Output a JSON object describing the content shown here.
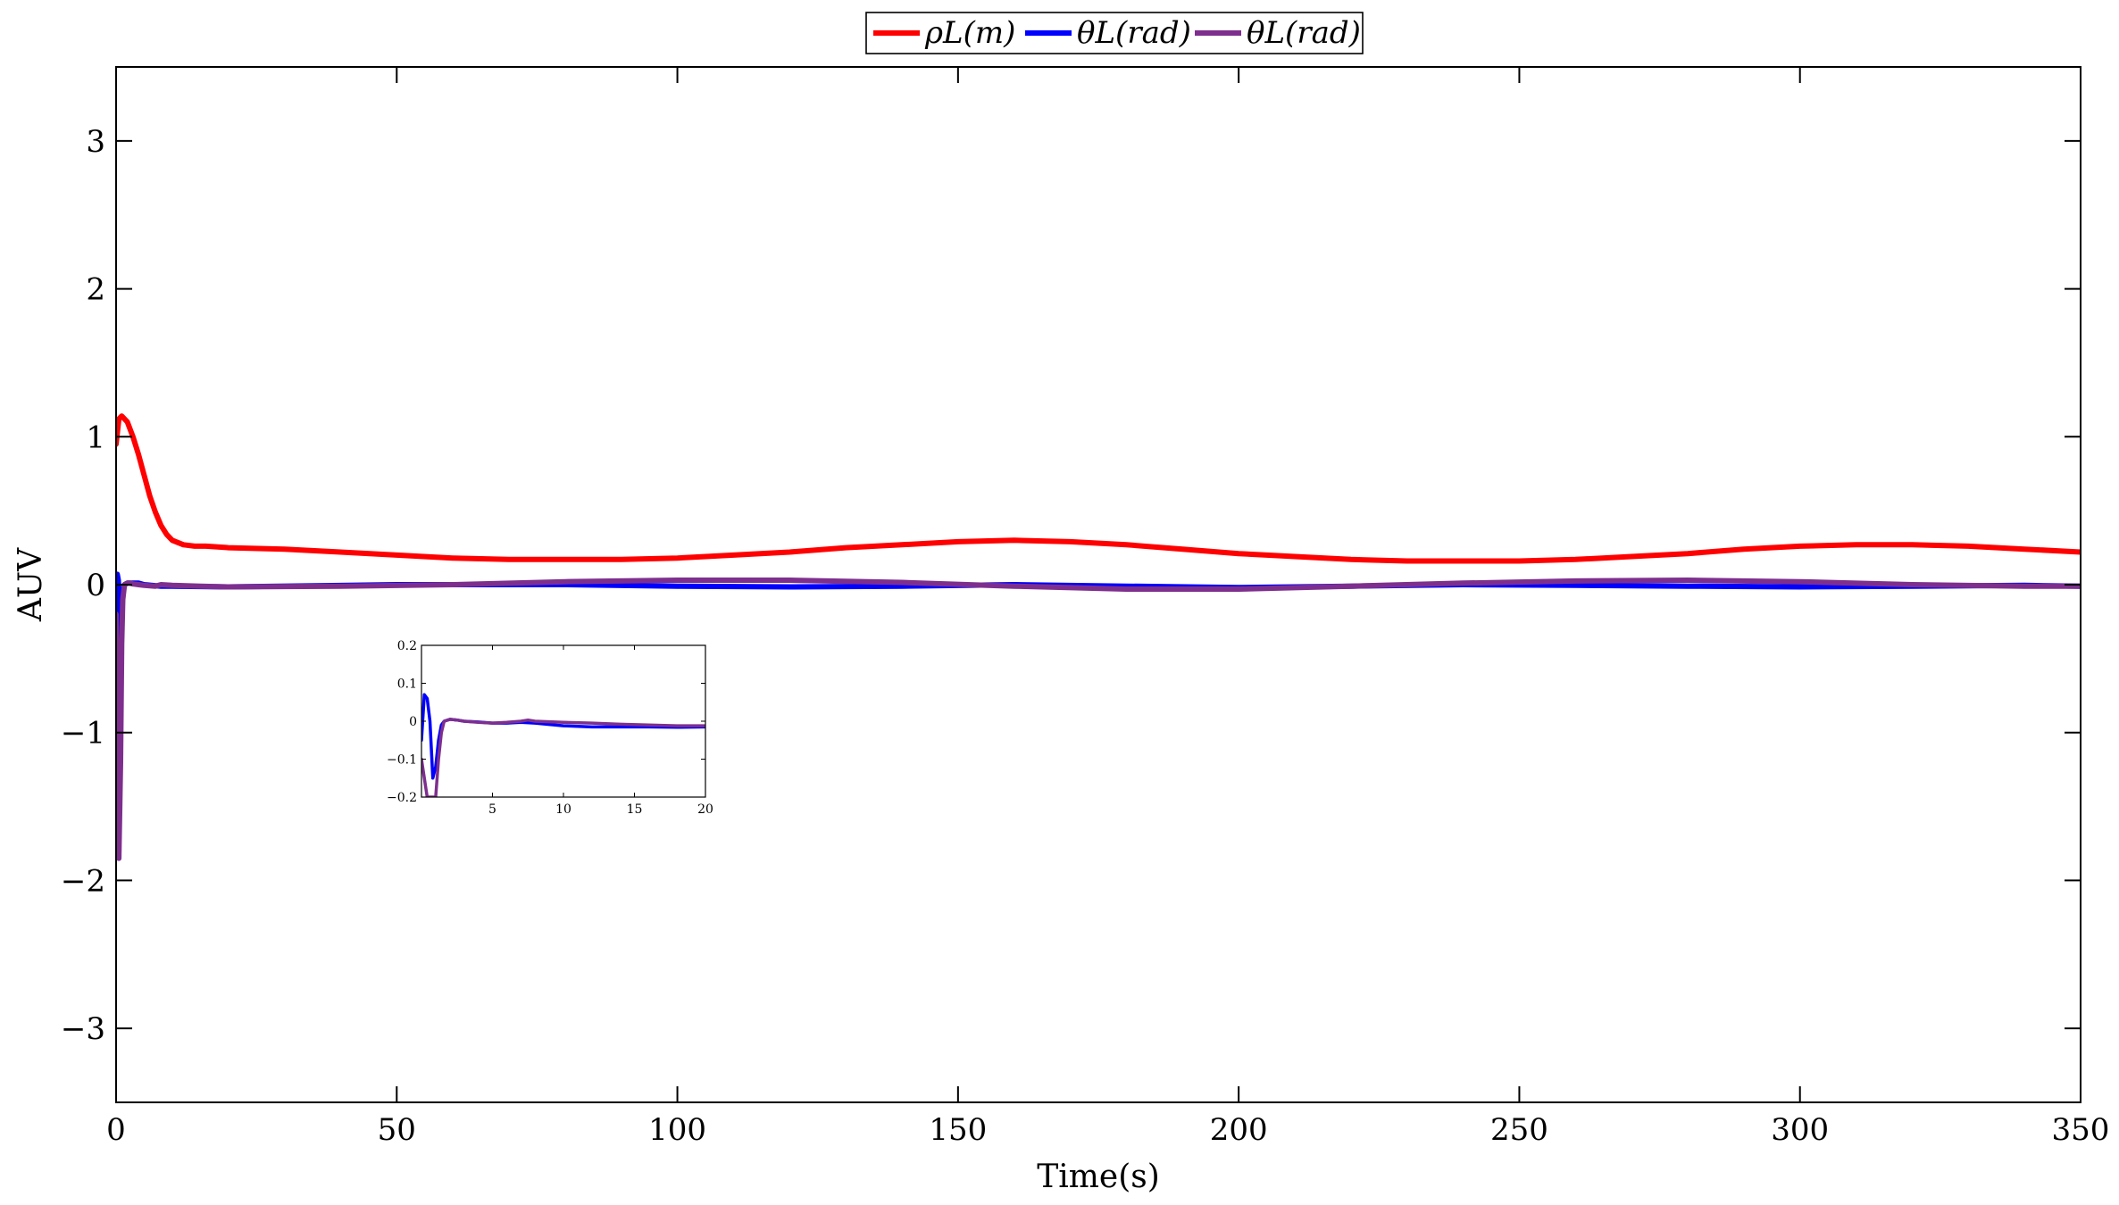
{
  "chart_data": [
    {
      "type": "line",
      "title": "",
      "xlabel": "Time(s)",
      "ylabel": "AUV",
      "xlim": [
        0,
        350
      ],
      "ylim": [
        -3.5,
        3.5
      ],
      "xticks": [
        0,
        50,
        100,
        150,
        200,
        250,
        300,
        350
      ],
      "yticks": [
        -3,
        -2,
        -1,
        0,
        1,
        2,
        3
      ],
      "xtick_labels": [
        "0",
        "50",
        "100",
        "150",
        "200",
        "250",
        "300",
        "350"
      ],
      "ytick_labels": [
        "−3",
        "−2",
        "−1",
        "0",
        "1",
        "2",
        "3"
      ],
      "grid": false,
      "legend_position": "top-center",
      "series": [
        {
          "name": "ρL(m)",
          "color": "#ff0000",
          "x": [
            0,
            0.5,
            1,
            2,
            3,
            4,
            5,
            6,
            7,
            8,
            9,
            10,
            12,
            14,
            16,
            20,
            30,
            40,
            50,
            60,
            70,
            80,
            90,
            100,
            110,
            120,
            130,
            140,
            150,
            160,
            170,
            180,
            190,
            200,
            210,
            220,
            230,
            240,
            250,
            260,
            270,
            280,
            290,
            300,
            310,
            320,
            330,
            340,
            350
          ],
          "values": [
            0.95,
            1.12,
            1.14,
            1.1,
            1.0,
            0.88,
            0.74,
            0.6,
            0.49,
            0.4,
            0.34,
            0.3,
            0.27,
            0.26,
            0.26,
            0.25,
            0.24,
            0.22,
            0.2,
            0.18,
            0.17,
            0.17,
            0.17,
            0.18,
            0.2,
            0.22,
            0.25,
            0.27,
            0.29,
            0.3,
            0.29,
            0.27,
            0.24,
            0.21,
            0.19,
            0.17,
            0.16,
            0.16,
            0.16,
            0.17,
            0.19,
            0.21,
            0.24,
            0.26,
            0.27,
            0.27,
            0.26,
            0.24,
            0.22
          ]
        },
        {
          "name": "θL(rad)",
          "color": "#0000ff",
          "x": [
            0,
            0.2,
            0.4,
            0.6,
            0.8,
            1.0,
            1.2,
            1.5,
            2,
            3,
            4,
            5,
            8,
            10,
            20,
            50,
            80,
            100,
            120,
            140,
            160,
            180,
            200,
            220,
            240,
            260,
            280,
            300,
            320,
            340,
            350
          ],
          "values": [
            -0.05,
            0.07,
            0.03,
            -0.15,
            -0.6,
            -0.2,
            -0.05,
            0.0,
            0.01,
            0.01,
            0.01,
            0.0,
            -0.01,
            -0.01,
            -0.015,
            0.0,
            0.0,
            -0.01,
            -0.015,
            -0.01,
            0.0,
            -0.01,
            -0.02,
            -0.01,
            0.0,
            -0.005,
            -0.01,
            -0.015,
            -0.01,
            -0.005,
            -0.01
          ]
        },
        {
          "name": "θL(rad)",
          "color": "#7e2f8e",
          "x": [
            0,
            0.3,
            0.5,
            0.8,
            1.0,
            1.2,
            1.5,
            2,
            2.5,
            3,
            4,
            5,
            7,
            8,
            10,
            15,
            20,
            40,
            60,
            80,
            100,
            120,
            140,
            160,
            180,
            200,
            220,
            240,
            260,
            280,
            300,
            320,
            340,
            350
          ],
          "values": [
            -0.2,
            -1.0,
            -1.85,
            -1.2,
            -0.4,
            -0.1,
            0.0,
            0.01,
            0.01,
            0.005,
            0.0,
            -0.005,
            -0.01,
            0.0,
            -0.005,
            -0.01,
            -0.015,
            -0.01,
            0.0,
            0.02,
            0.03,
            0.03,
            0.015,
            -0.01,
            -0.03,
            -0.03,
            -0.01,
            0.01,
            0.025,
            0.03,
            0.02,
            0.0,
            -0.01,
            -0.01
          ]
        }
      ]
    },
    {
      "type": "line",
      "title": "",
      "xlabel": "",
      "ylabel": "",
      "xlim": [
        0,
        20
      ],
      "ylim": [
        -0.2,
        0.2
      ],
      "xticks": [
        5,
        10,
        15,
        20
      ],
      "yticks": [
        -0.2,
        -0.1,
        0,
        0.1,
        0.2
      ],
      "xtick_labels": [
        "5",
        "10",
        "15",
        "20"
      ],
      "ytick_labels": [
        "−0.2",
        "−0.1",
        "0",
        "0.1",
        "0.2"
      ],
      "grid": false,
      "placement": "inset-lower-left",
      "series": [
        {
          "name": "θL(rad)",
          "color": "#0000ff",
          "x": [
            0,
            0.2,
            0.4,
            0.6,
            0.8,
            1.0,
            1.2,
            1.4,
            1.6,
            2.0,
            2.5,
            3,
            4,
            5,
            6,
            7,
            8,
            10,
            12,
            14,
            16,
            18,
            20
          ],
          "values": [
            -0.05,
            0.07,
            0.06,
            0.0,
            -0.15,
            -0.12,
            -0.05,
            -0.01,
            0.0,
            0.005,
            0.003,
            0.0,
            -0.002,
            -0.005,
            -0.005,
            -0.003,
            -0.005,
            -0.012,
            -0.015,
            -0.015,
            -0.015,
            -0.016,
            -0.015
          ]
        },
        {
          "name": "θL(rad)",
          "color": "#7e2f8e",
          "x": [
            0,
            0.4,
            0.6,
            0.8,
            1.0,
            1.2,
            1.4,
            1.6,
            2.0,
            2.5,
            3,
            4,
            5,
            6,
            7,
            7.5,
            8,
            10,
            12,
            14,
            16,
            18,
            20
          ],
          "values": [
            -0.1,
            -0.2,
            -0.2,
            -0.2,
            -0.2,
            -0.1,
            -0.03,
            0.0,
            0.005,
            0.003,
            0.0,
            -0.003,
            -0.005,
            -0.003,
            0.0,
            0.003,
            0.0,
            -0.003,
            -0.005,
            -0.008,
            -0.01,
            -0.012,
            -0.012
          ]
        }
      ]
    }
  ]
}
